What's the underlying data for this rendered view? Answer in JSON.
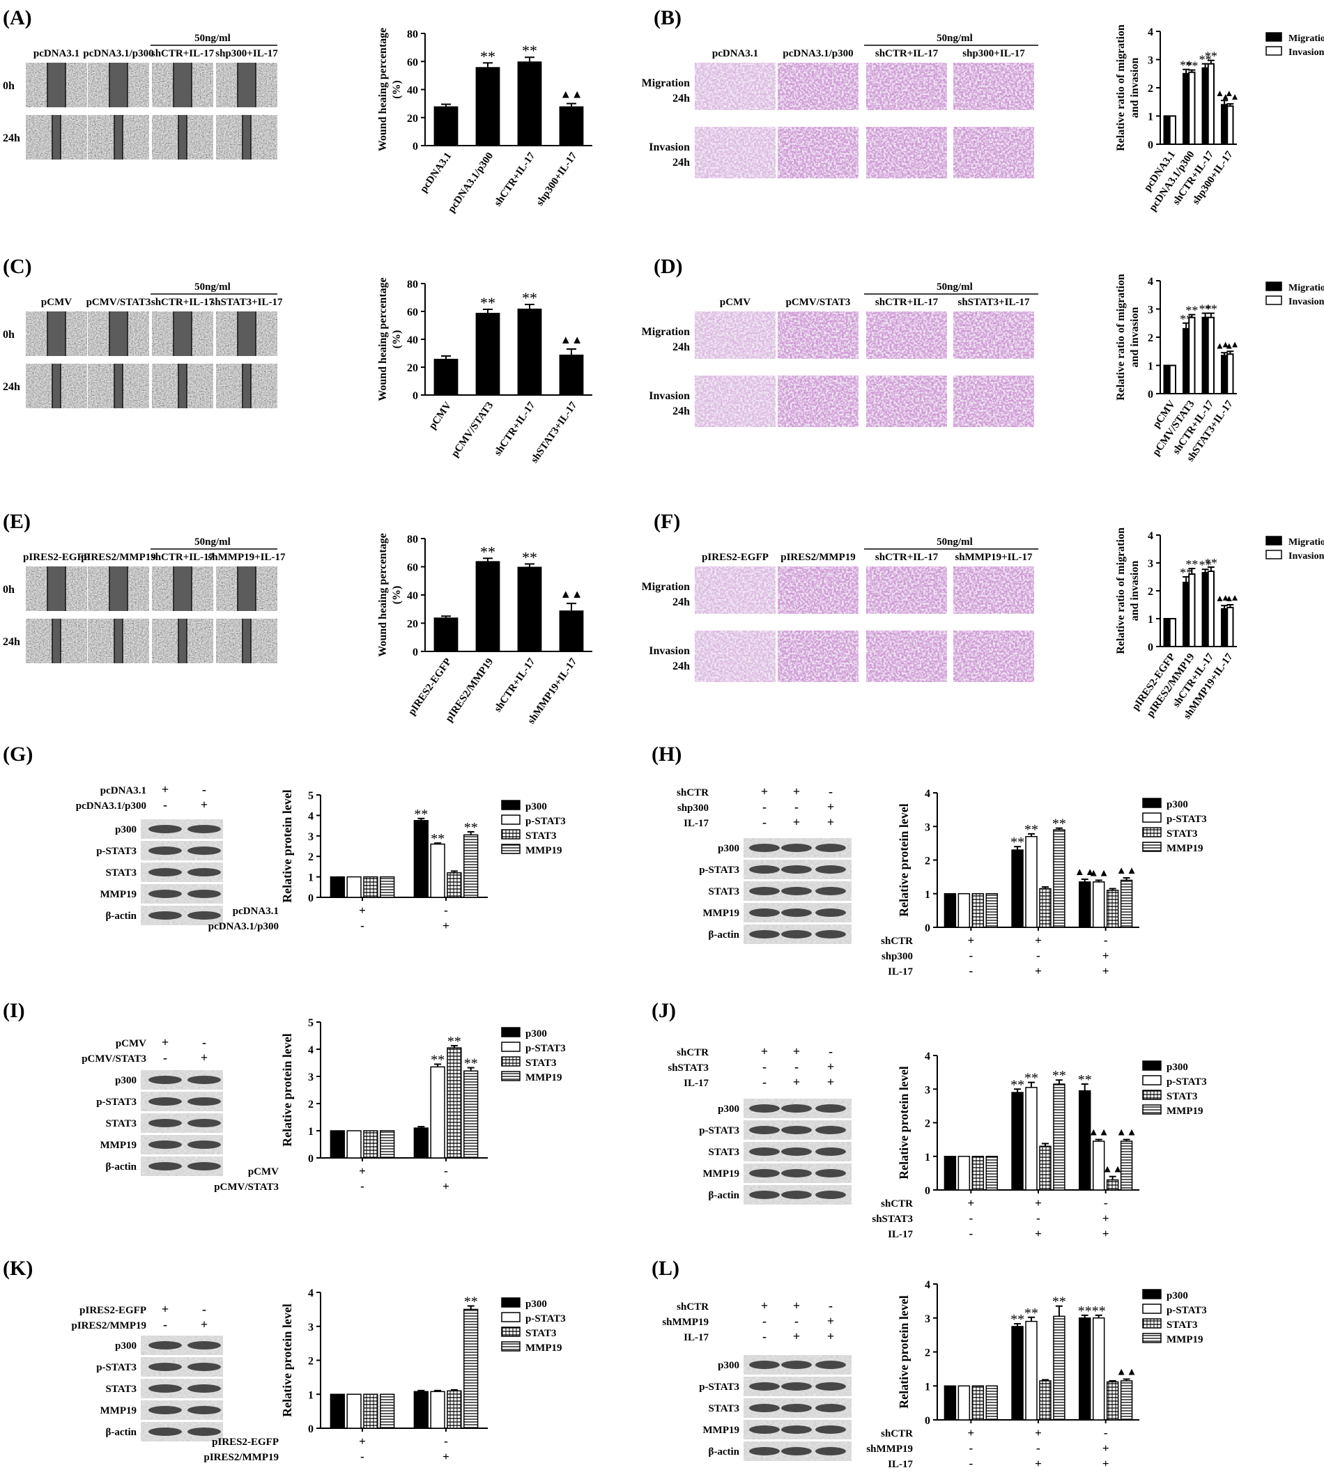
{
  "figure": {
    "dose_label": "50ng/ml",
    "stars": "**",
    "triangles": "▲▲",
    "wound_ylabel_line1": "Wound heaing percentage",
    "wound_ylabel_line2": "(%)",
    "ratio_ylabel_line1": "Relative ratio of migration",
    "ratio_ylabel_line2": "and invasion",
    "protein_ylabel": "Relative protein level",
    "time_rows": [
      "0h",
      "24h"
    ],
    "transwell_rows": [
      [
        "Migration",
        "24h"
      ],
      [
        "Invasion",
        "24h"
      ]
    ],
    "mig_inv_legend": [
      "Migration",
      "Invasion"
    ],
    "protein_legend": [
      "p300",
      "p-STAT3",
      "STAT3",
      "MMP19"
    ]
  },
  "wound_panels": [
    {
      "letter": "(A)",
      "conditions": [
        "pcDNA3.1",
        "pcDNA3.1/p300",
        "shCTR+IL-17",
        "shp300+IL-17"
      ]
    },
    {
      "letter": "(C)",
      "conditions": [
        "pCMV",
        "pCMV/STAT3",
        "shCTR+IL-17",
        "shSTAT3+IL-17"
      ]
    },
    {
      "letter": "(E)",
      "conditions": [
        "pIRES2-EGFP",
        "pIRES2/MMP19",
        "shCTR+IL-17",
        "shMMP19+IL-17"
      ]
    }
  ],
  "transwell_panels": [
    {
      "letter": "(B)",
      "conditions": [
        "pcDNA3.1",
        "pcDNA3.1/p300",
        "shCTR+IL-17",
        "shp300+IL-17"
      ]
    },
    {
      "letter": "(D)",
      "conditions": [
        "pCMV",
        "pCMV/STAT3",
        "shCTR+IL-17",
        "shSTAT3+IL-17"
      ]
    },
    {
      "letter": "(F)",
      "conditions": [
        "pIRES2-EGFP",
        "pIRES2/MMP19",
        "shCTR+IL-17",
        "shMMP19+IL-17"
      ]
    }
  ],
  "blot_panels": [
    {
      "letter": "(G)",
      "header": [
        [
          "pcDNA3.1",
          "+",
          "-"
        ],
        [
          "pcDNA3.1/p300",
          "-",
          "+"
        ]
      ],
      "bands": [
        "p300",
        "p-STAT3",
        "STAT3",
        "MMP19",
        "β-actin"
      ]
    },
    {
      "letter": "(H)",
      "header": [
        [
          "shCTR",
          "+",
          "+",
          "-"
        ],
        [
          "shp300",
          "-",
          "-",
          "+"
        ],
        [
          "IL-17",
          "-",
          "+",
          "+"
        ]
      ],
      "bands": [
        "p300",
        "p-STAT3",
        "STAT3",
        "MMP19",
        "β-actin"
      ]
    },
    {
      "letter": "(I)",
      "header": [
        [
          "pCMV",
          "+",
          "-"
        ],
        [
          "pCMV/STAT3",
          "-",
          "+"
        ]
      ],
      "bands": [
        "p300",
        "p-STAT3",
        "STAT3",
        "MMP19",
        "β-actin"
      ]
    },
    {
      "letter": "(J)",
      "header": [
        [
          "shCTR",
          "+",
          "+",
          "-"
        ],
        [
          "shSTAT3",
          "-",
          "-",
          "+"
        ],
        [
          "IL-17",
          "-",
          "+",
          "+"
        ]
      ],
      "bands": [
        "p300",
        "p-STAT3",
        "STAT3",
        "MMP19",
        "β-actin"
      ]
    },
    {
      "letter": "(K)",
      "header": [
        [
          "pIRES2-EGFP",
          "+",
          "-"
        ],
        [
          "pIRES2/MMP19",
          "-",
          "+"
        ]
      ],
      "bands": [
        "p300",
        "p-STAT3",
        "STAT3",
        "MMP19",
        "β-actin"
      ]
    },
    {
      "letter": "(L)",
      "header": [
        [
          "shCTR",
          "+",
          "+",
          "-"
        ],
        [
          "shMMP19",
          "-",
          "-",
          "+"
        ],
        [
          "IL-17",
          "-",
          "+",
          "+"
        ]
      ],
      "bands": [
        "p300",
        "p-STAT3",
        "STAT3",
        "MMP19",
        "β-actin"
      ]
    }
  ],
  "chart_data": [
    {
      "panel": "A",
      "type": "bar",
      "categories": [
        "pcDNA3.1",
        "pcDNA3.1/p300",
        "shCTR+IL-17",
        "shp300+IL-17"
      ],
      "values": [
        28,
        56,
        60,
        28
      ],
      "errors": [
        1.5,
        3,
        3,
        2
      ],
      "marks": [
        "",
        "**",
        "**",
        "▲▲"
      ],
      "ylabel": "Wound heaing percentage (%)",
      "ylim": [
        0,
        80
      ],
      "yticks": [
        0,
        20,
        40,
        60,
        80
      ]
    },
    {
      "panel": "B",
      "type": "bar",
      "categories": [
        "pcDNA3.1",
        "pcDNA3.1/p300",
        "shCTR+IL-17",
        "shp300+IL-17"
      ],
      "series": [
        {
          "name": "Migration",
          "values": [
            1,
            2.5,
            2.7,
            1.4
          ],
          "errors": [
            0,
            0.15,
            0.15,
            0.15
          ],
          "marks": [
            "",
            "**",
            "**",
            "▲▲"
          ]
        },
        {
          "name": "Invasion",
          "values": [
            1,
            2.55,
            2.85,
            1.35
          ],
          "errors": [
            0,
            0.08,
            0.12,
            0.08
          ],
          "marks": [
            "",
            "**",
            "**",
            "▲▲"
          ]
        }
      ],
      "ylabel": "Relative ratio of migration and invasion",
      "ylim": [
        0,
        4
      ],
      "yticks": [
        0,
        1,
        2,
        3,
        4
      ],
      "legend": "top-right"
    },
    {
      "panel": "C",
      "type": "bar",
      "categories": [
        "pCMV",
        "pCMV/STAT3",
        "shCTR+IL-17",
        "shSTAT3+IL-17"
      ],
      "values": [
        26,
        59,
        62,
        29
      ],
      "errors": [
        2,
        2.5,
        3,
        4
      ],
      "marks": [
        "",
        "**",
        "**",
        "▲▲"
      ],
      "ylabel": "Wound heaing percentage (%)",
      "ylim": [
        0,
        80
      ],
      "yticks": [
        0,
        20,
        40,
        60,
        80
      ]
    },
    {
      "panel": "D",
      "type": "bar",
      "categories": [
        "pCMV",
        "pCMV/STAT3",
        "shCTR+IL-17",
        "shSTAT3+IL-17"
      ],
      "series": [
        {
          "name": "Migration",
          "values": [
            1,
            2.3,
            2.7,
            1.35
          ],
          "errors": [
            0,
            0.2,
            0.15,
            0.1
          ],
          "marks": [
            "",
            "**",
            "**",
            "▲▲"
          ]
        },
        {
          "name": "Invasion",
          "values": [
            1,
            2.7,
            2.7,
            1.4
          ],
          "errors": [
            0,
            0.1,
            0.15,
            0.1
          ],
          "marks": [
            "",
            "**",
            "**",
            "▲▲"
          ]
        }
      ],
      "ylabel": "Relative ratio of migration and invasion",
      "ylim": [
        0,
        4
      ],
      "yticks": [
        0,
        1,
        2,
        3,
        4
      ],
      "legend": "top-right"
    },
    {
      "panel": "E",
      "type": "bar",
      "categories": [
        "pIRES2-EGFP",
        "pIRES2/MMP19",
        "shCTR+IL-17",
        "shMMP19+IL-17"
      ],
      "values": [
        24,
        64,
        60,
        29
      ],
      "errors": [
        1,
        2,
        2,
        5
      ],
      "marks": [
        "",
        "**",
        "**",
        "▲▲"
      ],
      "ylabel": "Wound heaing percentage (%)",
      "ylim": [
        0,
        80
      ],
      "yticks": [
        0,
        20,
        40,
        60,
        80
      ]
    },
    {
      "panel": "F",
      "type": "bar",
      "categories": [
        "pIRES2-EGFP",
        "pIRES2/MMP19",
        "shCTR+IL-17",
        "shMMP19+IL-17"
      ],
      "series": [
        {
          "name": "Migration",
          "values": [
            1,
            2.3,
            2.65,
            1.35
          ],
          "errors": [
            0,
            0.2,
            0.12,
            0.12
          ],
          "marks": [
            "",
            "**",
            "**",
            "▲▲"
          ]
        },
        {
          "name": "Invasion",
          "values": [
            1,
            2.6,
            2.7,
            1.4
          ],
          "errors": [
            0,
            0.2,
            0.15,
            0.1
          ],
          "marks": [
            "",
            "**",
            "**",
            "▲▲"
          ]
        }
      ],
      "ylabel": "Relative ratio of migration and invasion",
      "ylim": [
        0,
        4
      ],
      "yticks": [
        0,
        1,
        2,
        3,
        4
      ],
      "legend": "top-right"
    },
    {
      "panel": "G",
      "type": "bar",
      "group_rows": [
        [
          "pcDNA3.1",
          "+",
          "-"
        ],
        [
          "pcDNA3.1/p300",
          "-",
          "+"
        ]
      ],
      "series": [
        {
          "name": "p300",
          "values": [
            1,
            3.75
          ],
          "errors": [
            0,
            0.1
          ],
          "marks": [
            "",
            "**"
          ]
        },
        {
          "name": "p-STAT3",
          "values": [
            1,
            2.6
          ],
          "errors": [
            0,
            0.05
          ],
          "marks": [
            "",
            "**"
          ]
        },
        {
          "name": "STAT3",
          "values": [
            1,
            1.2
          ],
          "errors": [
            0,
            0.08
          ],
          "marks": [
            "",
            ""
          ]
        },
        {
          "name": "MMP19",
          "values": [
            1,
            3.05
          ],
          "errors": [
            0,
            0.15
          ],
          "marks": [
            "",
            "**"
          ]
        }
      ],
      "ylabel": "Relative protein level",
      "ylim": [
        0,
        5
      ],
      "yticks": [
        0,
        1,
        2,
        3,
        4,
        5
      ],
      "legend": "top-right"
    },
    {
      "panel": "H",
      "type": "bar",
      "group_rows": [
        [
          "shCTR",
          "+",
          "+",
          "-"
        ],
        [
          "shp300",
          "-",
          "-",
          "+"
        ],
        [
          "IL-17",
          "-",
          "+",
          "+"
        ]
      ],
      "series": [
        {
          "name": "p300",
          "values": [
            1,
            2.3,
            1.35
          ],
          "errors": [
            0,
            0.1,
            0.08
          ],
          "marks": [
            "",
            "**",
            "▲▲"
          ]
        },
        {
          "name": "p-STAT3",
          "values": [
            1,
            2.7,
            1.35
          ],
          "errors": [
            0,
            0.08,
            0.05
          ],
          "marks": [
            "",
            "**",
            "▲▲"
          ]
        },
        {
          "name": "STAT3",
          "values": [
            1,
            1.15,
            1.1
          ],
          "errors": [
            0,
            0.05,
            0.05
          ],
          "marks": [
            "",
            "",
            ""
          ]
        },
        {
          "name": "MMP19",
          "values": [
            1,
            2.9,
            1.4
          ],
          "errors": [
            0,
            0.05,
            0.07
          ],
          "marks": [
            "",
            "**",
            "▲▲"
          ]
        }
      ],
      "ylabel": "Relative protein level",
      "ylim": [
        0,
        4
      ],
      "yticks": [
        0,
        1,
        2,
        3,
        4
      ],
      "legend": "top-right"
    },
    {
      "panel": "I",
      "type": "bar",
      "group_rows": [
        [
          "pCMV",
          "+",
          "-"
        ],
        [
          "pCMV/STAT3",
          "-",
          "+"
        ]
      ],
      "series": [
        {
          "name": "p300",
          "values": [
            1,
            1.1
          ],
          "errors": [
            0,
            0.05
          ],
          "marks": [
            "",
            ""
          ]
        },
        {
          "name": "p-STAT3",
          "values": [
            1,
            3.35
          ],
          "errors": [
            0,
            0.1
          ],
          "marks": [
            "",
            "**"
          ]
        },
        {
          "name": "STAT3",
          "values": [
            1,
            4.05
          ],
          "errors": [
            0,
            0.08
          ],
          "marks": [
            "",
            "**"
          ]
        },
        {
          "name": "MMP19",
          "values": [
            1,
            3.2
          ],
          "errors": [
            0,
            0.12
          ],
          "marks": [
            "",
            "**"
          ]
        }
      ],
      "ylabel": "Relative protein level",
      "ylim": [
        0,
        5
      ],
      "yticks": [
        0,
        1,
        2,
        3,
        4,
        5
      ],
      "legend": "top-right"
    },
    {
      "panel": "J",
      "type": "bar",
      "group_rows": [
        [
          "shCTR",
          "+",
          "+",
          "-"
        ],
        [
          "shSTAT3",
          "-",
          "-",
          "+"
        ],
        [
          "IL-17",
          "-",
          "+",
          "+"
        ]
      ],
      "series": [
        {
          "name": "p300",
          "values": [
            1,
            2.9,
            2.95
          ],
          "errors": [
            0,
            0.1,
            0.2
          ],
          "marks": [
            "",
            "**",
            "**"
          ]
        },
        {
          "name": "p-STAT3",
          "values": [
            1,
            3.05,
            1.45
          ],
          "errors": [
            0,
            0.15,
            0.05
          ],
          "marks": [
            "",
            "**",
            "▲▲"
          ]
        },
        {
          "name": "STAT3",
          "values": [
            1,
            1.3,
            0.3
          ],
          "errors": [
            0,
            0.08,
            0.1
          ],
          "marks": [
            "",
            "",
            "▲▲"
          ]
        },
        {
          "name": "MMP19",
          "values": [
            1,
            3.15,
            1.45
          ],
          "errors": [
            0,
            0.12,
            0.05
          ],
          "marks": [
            "",
            "**",
            "▲▲"
          ]
        }
      ],
      "ylabel": "Relative protein level",
      "ylim": [
        0,
        4
      ],
      "yticks": [
        0,
        1,
        2,
        3,
        4
      ],
      "legend": "top-right"
    },
    {
      "panel": "K",
      "type": "bar",
      "group_rows": [
        [
          "pIRES2-EGFP",
          "+",
          "-"
        ],
        [
          "pIRES2/MMP19",
          "-",
          "+"
        ]
      ],
      "series": [
        {
          "name": "p300",
          "values": [
            1,
            1.08
          ],
          "errors": [
            0,
            0.03
          ],
          "marks": [
            "",
            ""
          ]
        },
        {
          "name": "p-STAT3",
          "values": [
            1,
            1.08
          ],
          "errors": [
            0,
            0.03
          ],
          "marks": [
            "",
            ""
          ]
        },
        {
          "name": "STAT3",
          "values": [
            1,
            1.1
          ],
          "errors": [
            0,
            0.03
          ],
          "marks": [
            "",
            ""
          ]
        },
        {
          "name": "MMP19",
          "values": [
            1,
            3.5
          ],
          "errors": [
            0,
            0.1
          ],
          "marks": [
            "",
            "**"
          ]
        }
      ],
      "ylabel": "Relative protein level",
      "ylim": [
        0,
        4
      ],
      "yticks": [
        0,
        1,
        2,
        3,
        4
      ],
      "legend": "top-right"
    },
    {
      "panel": "L",
      "type": "bar",
      "group_rows": [
        [
          "shCTR",
          "+",
          "+",
          "-"
        ],
        [
          "shMMP19",
          "-",
          "-",
          "+"
        ],
        [
          "IL-17",
          "-",
          "+",
          "+"
        ]
      ],
      "series": [
        {
          "name": "p300",
          "values": [
            1,
            2.75,
            3.0
          ],
          "errors": [
            0,
            0.08,
            0.08
          ],
          "marks": [
            "",
            "**",
            "**"
          ]
        },
        {
          "name": "p-STAT3",
          "values": [
            1,
            2.9,
            3.0
          ],
          "errors": [
            0,
            0.12,
            0.08
          ],
          "marks": [
            "",
            "**",
            "**"
          ]
        },
        {
          "name": "STAT3",
          "values": [
            1,
            1.15,
            1.12
          ],
          "errors": [
            0,
            0.03,
            0.03
          ],
          "marks": [
            "",
            "",
            ""
          ]
        },
        {
          "name": "MMP19",
          "values": [
            1,
            3.05,
            1.15
          ],
          "errors": [
            0,
            0.3,
            0.05
          ],
          "marks": [
            "",
            "**",
            "▲▲"
          ]
        }
      ],
      "ylabel": "Relative protein level",
      "ylim": [
        0,
        4
      ],
      "yticks": [
        0,
        1,
        2,
        3,
        4
      ],
      "legend": "top-right"
    }
  ]
}
